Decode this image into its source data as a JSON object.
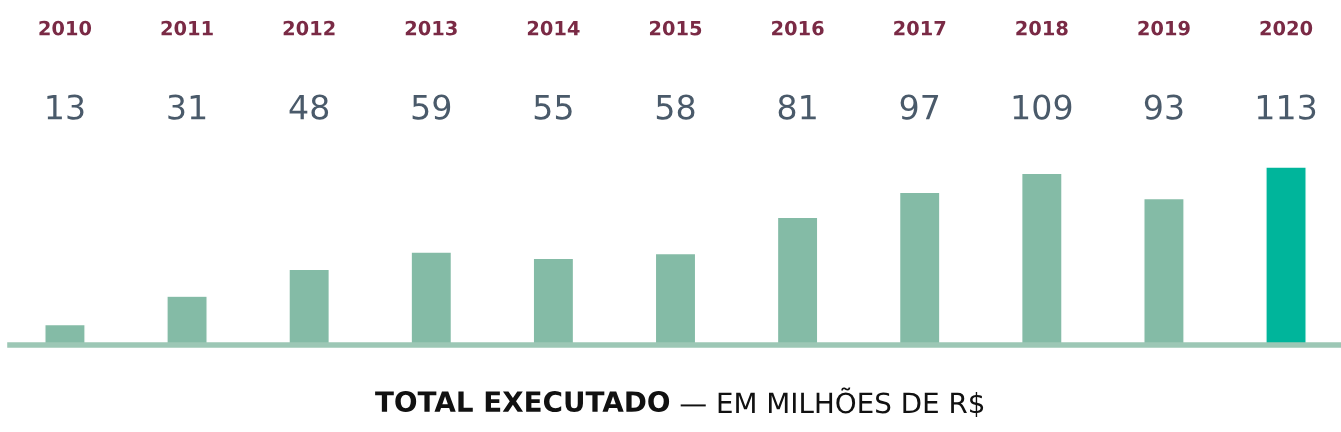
{
  "chart_data": {
    "type": "bar",
    "title": "TOTAL EXECUTADO",
    "subtitle": "— EM MILHÕES DE R$",
    "categories": [
      "2010",
      "2011",
      "2012",
      "2013",
      "2014",
      "2015",
      "2016",
      "2017",
      "2018",
      "2019",
      "2020"
    ],
    "values": [
      13,
      31,
      48,
      59,
      55,
      58,
      81,
      97,
      109,
      93,
      113
    ],
    "colors": [
      "#84bba6",
      "#84bba6",
      "#84bba6",
      "#84bba6",
      "#84bba6",
      "#84bba6",
      "#84bba6",
      "#84bba6",
      "#84bba6",
      "#84bba6",
      "#00b59b"
    ],
    "data_labels": true,
    "grid": false,
    "legend": false
  }
}
